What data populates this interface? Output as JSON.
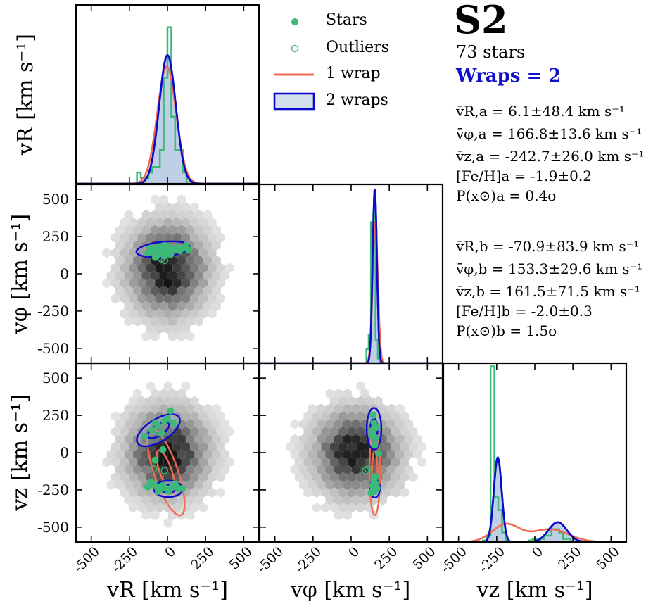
{
  "header": {
    "title": "S2",
    "star_count": "73 stars",
    "wraps": "Wraps = 2"
  },
  "legend": {
    "stars": "Stars",
    "outliers": "Outliers",
    "one_wrap": "1 wrap",
    "two_wraps": "2 wraps"
  },
  "stats_a": [
    "v̄R,a = 6.1±48.4 km s⁻¹",
    "v̄φ,a = 166.8±13.6 km s⁻¹",
    "v̄z,a = -242.7±26.0 km s⁻¹",
    "[Fe/H]a = -1.9±0.2",
    "P(x⊙)a = 0.4σ"
  ],
  "stats_b": [
    "v̄R,b = -70.9±83.9 km s⁻¹",
    "v̄φ,b = 153.3±29.6 km s⁻¹",
    "v̄z,b = 161.5±71.5 km s⁻¹",
    "[Fe/H]b = -2.0±0.3",
    "P(x⊙)b = 1.5σ"
  ],
  "colors": {
    "stars": "#3cb878",
    "one_wrap": "#f26b4f",
    "two_wraps": "#0a0acc",
    "fill": "#a9bfdc"
  },
  "chart_data": {
    "type": "scatter",
    "layout": "corner-plot",
    "axis_range": [
      -600,
      600
    ],
    "ticks": [
      -500,
      -250,
      0,
      250,
      500
    ],
    "tick_labels": [
      "-500",
      "-250",
      "0",
      "250",
      "500"
    ],
    "axis_labels": {
      "vR": "vR [km s⁻¹]",
      "vphi": "vφ [km s⁻¹]",
      "vz": "vz [km s⁻¹]"
    },
    "histograms": {
      "vR": {
        "edges": [
          -200,
          -175,
          -150,
          -125,
          -100,
          -75,
          -50,
          -25,
          0,
          25,
          50,
          75,
          100,
          125,
          150
        ],
        "counts": [
          0.2,
          0.1,
          0.1,
          0.2,
          0.3,
          0.3,
          0.6,
          1.9,
          2.8,
          1.2,
          0.6,
          0.6,
          0.2,
          0.0
        ]
      },
      "vphi": {
        "edges": [
          100,
          115,
          130,
          145,
          160,
          175,
          190
        ],
        "counts": [
          0.3,
          0.6,
          3.0,
          3.2,
          0.5,
          0.1
        ]
      },
      "vz": {
        "edges": [
          -340,
          -315,
          -290,
          -265,
          -240,
          -215,
          -190,
          -165,
          -140,
          -115,
          -90,
          -65,
          -40,
          -15,
          10,
          35,
          60,
          85,
          110,
          135,
          160,
          185,
          210,
          235,
          260
        ],
        "counts": [
          0.05,
          0.2,
          5.5,
          1.4,
          1.0,
          0.3,
          0.0,
          0.0,
          0.0,
          0.0,
          0.0,
          0.0,
          0.05,
          0.1,
          0.0,
          0.1,
          0.2,
          0.2,
          0.4,
          0.4,
          0.3,
          0.1,
          0.1,
          0.0
        ]
      }
    },
    "stars_vR_vphi": [
      [
        -120,
        170
      ],
      [
        -100,
        160
      ],
      [
        -90,
        150
      ],
      [
        -70,
        180
      ],
      [
        -60,
        130
      ],
      [
        -50,
        160
      ],
      [
        -40,
        175
      ],
      [
        -30,
        150
      ],
      [
        -20,
        190
      ],
      [
        -10,
        170
      ],
      [
        0,
        160
      ],
      [
        10,
        180
      ],
      [
        20,
        150
      ],
      [
        30,
        170
      ],
      [
        40,
        160
      ],
      [
        60,
        175
      ],
      [
        80,
        155
      ],
      [
        100,
        170
      ],
      [
        120,
        190
      ],
      [
        -80,
        110
      ],
      [
        -20,
        120
      ],
      [
        20,
        130
      ],
      [
        -130,
        140
      ],
      [
        140,
        160
      ]
    ],
    "outliers_vR_vphi": [
      [
        -20,
        90
      ],
      [
        -40,
        100
      ]
    ],
    "stars_vR_vz": [
      [
        -100,
        150
      ],
      [
        -80,
        200
      ],
      [
        -60,
        180
      ],
      [
        -40,
        130
      ],
      [
        -20,
        210
      ],
      [
        0,
        230
      ],
      [
        20,
        280
      ],
      [
        40,
        200
      ],
      [
        -90,
        -210
      ],
      [
        -70,
        -230
      ],
      [
        -50,
        -250
      ],
      [
        -30,
        -220
      ],
      [
        -10,
        -240
      ],
      [
        10,
        -260
      ],
      [
        30,
        -230
      ],
      [
        50,
        -210
      ],
      [
        70,
        -240
      ],
      [
        -110,
        -200
      ],
      [
        -130,
        -230
      ],
      [
        100,
        -240
      ],
      [
        -60,
        -260
      ],
      [
        -30,
        20
      ],
      [
        -150,
        110
      ],
      [
        -80,
        -50
      ]
    ],
    "outliers_vR_vz": [
      [
        -90,
        -110
      ],
      [
        -20,
        -120
      ]
    ],
    "stars_vphi_vz": [
      [
        140,
        150
      ],
      [
        150,
        200
      ],
      [
        160,
        100
      ],
      [
        145,
        250
      ],
      [
        155,
        50
      ],
      [
        170,
        170
      ],
      [
        135,
        120
      ],
      [
        150,
        -200
      ],
      [
        160,
        -230
      ],
      [
        145,
        -250
      ],
      [
        165,
        -210
      ],
      [
        155,
        -260
      ],
      [
        140,
        -220
      ],
      [
        170,
        -240
      ],
      [
        150,
        -180
      ],
      [
        180,
        -5
      ],
      [
        130,
        -270
      ],
      [
        160,
        -160
      ]
    ],
    "outliers_vphi_vz": [
      [
        95,
        -120
      ],
      [
        110,
        -110
      ]
    ],
    "density_centers": {
      "vR_vphi": [
        0,
        30
      ],
      "vR_vz": [
        0,
        0
      ],
      "vphi_vz": [
        30,
        0
      ]
    }
  }
}
